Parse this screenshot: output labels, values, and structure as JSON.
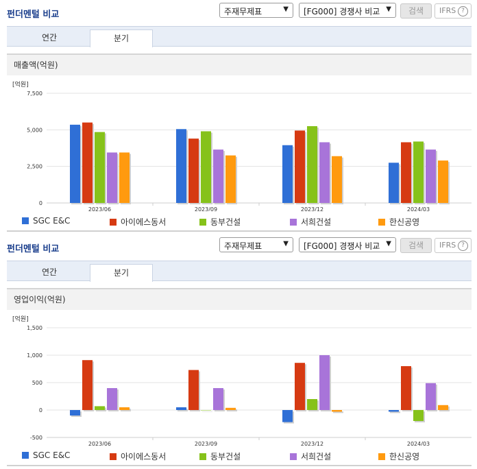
{
  "sections": [
    {
      "title": "펀더멘털 비교",
      "select1": "주재무제표",
      "select2": "[FG000] 경쟁사 비교",
      "search_label": "검색",
      "ifrs_label": "IFRS",
      "ifrs_help": "?",
      "tabs": [
        {
          "label": "연간"
        },
        {
          "label": "분기"
        }
      ],
      "subtitle": "매출액(억원)"
    },
    {
      "title": "펀더멘털 비교",
      "select1": "주재무제표",
      "select2": "[FG000] 경쟁사 비교",
      "search_label": "검색",
      "ifrs_label": "IFRS",
      "ifrs_help": "?",
      "tabs": [
        {
          "label": "연간"
        },
        {
          "label": "분기"
        }
      ],
      "subtitle": "영업이익(억원)"
    }
  ],
  "colors": {
    "SGC E&C": "#2f6fd6",
    "아이에스동서": "#d63a12",
    "동부건설": "#86c21a",
    "서희건설": "#a874d9",
    "한신공영": "#ff9a0f"
  },
  "chart_data": [
    {
      "type": "bar",
      "title": "매출액(억원)",
      "unit": "[억원]",
      "categories": [
        "2023/06",
        "2023/09",
        "2023/12",
        "2024/03"
      ],
      "yticks": [
        0,
        2500,
        5000,
        7500
      ],
      "ytick_labels": [
        "0",
        "2,500",
        "5,000",
        "7,500"
      ],
      "ylim": [
        0,
        7500
      ],
      "series": [
        {
          "name": "SGC E&C",
          "values": [
            5350,
            5050,
            3950,
            2750
          ]
        },
        {
          "name": "아이에스동서",
          "values": [
            5500,
            4400,
            4950,
            4150
          ]
        },
        {
          "name": "동부건설",
          "values": [
            4850,
            4900,
            5250,
            4200
          ]
        },
        {
          "name": "서희건설",
          "values": [
            3450,
            3650,
            4150,
            3650
          ]
        },
        {
          "name": "한신공영",
          "values": [
            3450,
            3250,
            3200,
            2900
          ]
        }
      ]
    },
    {
      "type": "bar",
      "title": "영업이익(억원)",
      "unit": "[억원]",
      "categories": [
        "2023/06",
        "2023/09",
        "2023/12",
        "2024/03"
      ],
      "yticks": [
        -500,
        0,
        500,
        1000,
        1500
      ],
      "ytick_labels": [
        "-500",
        "0",
        "500",
        "1,000",
        "1,500"
      ],
      "ylim": [
        -500,
        1500
      ],
      "series": [
        {
          "name": "SGC E&C",
          "values": [
            -100,
            50,
            -220,
            -30
          ]
        },
        {
          "name": "아이에스동서",
          "values": [
            910,
            730,
            860,
            800
          ]
        },
        {
          "name": "동부건설",
          "values": [
            70,
            0,
            200,
            -200
          ]
        },
        {
          "name": "서희건설",
          "values": [
            400,
            400,
            1000,
            490
          ]
        },
        {
          "name": "한신공영",
          "values": [
            50,
            40,
            -30,
            90
          ]
        }
      ]
    }
  ]
}
